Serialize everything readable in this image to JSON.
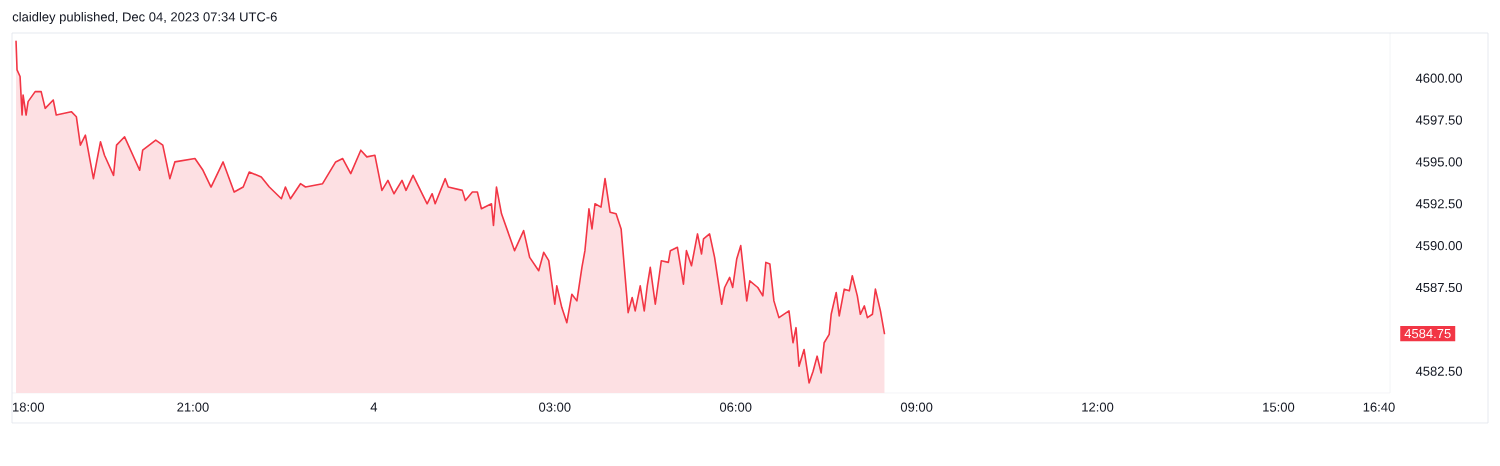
{
  "chart_data": {
    "type": "area",
    "title": "claidley published, Dec 04, 2023 07:34 UTC-6",
    "xlim": [
      "2023-12-03T18:00",
      "2023-12-04T16:51"
    ],
    "ylim": [
      4581.2,
      4602.7
    ],
    "xticks": [
      {
        "value": "2023-12-03T18:00",
        "label": "18:00"
      },
      {
        "value": "2023-12-03T21:00",
        "label": "21:00"
      },
      {
        "value": "2023-12-04T00:00",
        "label": "4"
      },
      {
        "value": "2023-12-04T03:00",
        "label": "03:00"
      },
      {
        "value": "2023-12-04T06:00",
        "label": "06:00"
      },
      {
        "value": "2023-12-04T09:00",
        "label": "09:00"
      },
      {
        "value": "2023-12-04T12:00",
        "label": "12:00"
      },
      {
        "value": "2023-12-04T15:00",
        "label": "15:00"
      },
      {
        "value": "2023-12-04T16:40",
        "label": "16:40"
      }
    ],
    "yticks": [
      {
        "value": 4582.5,
        "label": "4582.50"
      },
      {
        "value": 4587.5,
        "label": "4587.50"
      },
      {
        "value": 4590,
        "label": "4590.00"
      },
      {
        "value": 4592.5,
        "label": "4592.50"
      },
      {
        "value": 4595,
        "label": "4595.00"
      },
      {
        "value": 4597.5,
        "label": "4597.50"
      },
      {
        "value": 4600,
        "label": "4600.00"
      }
    ],
    "annotations": [
      "4584.75"
    ],
    "series": [
      {
        "color": "#f23645",
        "x": [
          "2023-12-03T18:04",
          "2023-12-03T18:05",
          "2023-12-03T18:08",
          "2023-12-03T18:10",
          "2023-12-03T18:11",
          "2023-12-03T18:14",
          "2023-12-03T18:16",
          "2023-12-03T18:23",
          "2023-12-03T18:29",
          "2023-12-03T18:33",
          "2023-12-03T18:41",
          "2023-12-03T18:44",
          "2023-12-03T18:59",
          "2023-12-03T19:04",
          "2023-12-03T19:08",
          "2023-12-03T19:13",
          "2023-12-03T19:21",
          "2023-12-03T19:28",
          "2023-12-03T19:32",
          "2023-12-03T19:41",
          "2023-12-03T19:44",
          "2023-12-03T19:52",
          "2023-12-03T20:07",
          "2023-12-03T20:10",
          "2023-12-03T20:23",
          "2023-12-03T20:30",
          "2023-12-03T20:37",
          "2023-12-03T20:42",
          "2023-12-03T21:02",
          "2023-12-03T21:10",
          "2023-12-03T21:18",
          "2023-12-03T21:30",
          "2023-12-03T21:41",
          "2023-12-03T21:50",
          "2023-12-03T21:56",
          "2023-12-03T22:08",
          "2023-12-03T22:16",
          "2023-12-03T22:28",
          "2023-12-03T22:32",
          "2023-12-03T22:37",
          "2023-12-03T22:47",
          "2023-12-03T22:52",
          "2023-12-03T23:09",
          "2023-12-03T23:22",
          "2023-12-03T23:29",
          "2023-12-03T23:37",
          "2023-12-03T23:47",
          "2023-12-03T23:53",
          "2023-12-04T00:01",
          "2023-12-04T00:08",
          "2023-12-04T00:14",
          "2023-12-04T00:20",
          "2023-12-04T00:28",
          "2023-12-04T00:32",
          "2023-12-04T00:39",
          "2023-12-04T00:53",
          "2023-12-04T00:58",
          "2023-12-04T01:01",
          "2023-12-04T01:11",
          "2023-12-04T01:14",
          "2023-12-04T01:28",
          "2023-12-04T01:31",
          "2023-12-04T01:38",
          "2023-12-04T01:43",
          "2023-12-04T01:47",
          "2023-12-04T01:57",
          "2023-12-04T01:59",
          "2023-12-04T02:02",
          "2023-12-04T02:07",
          "2023-12-04T02:20",
          "2023-12-04T02:29",
          "2023-12-04T02:35",
          "2023-12-04T02:44",
          "2023-12-04T02:49",
          "2023-12-04T02:54",
          "2023-12-04T03:00",
          "2023-12-04T03:02",
          "2023-12-04T03:07",
          "2023-12-04T03:12",
          "2023-12-04T03:17",
          "2023-12-04T03:22",
          "2023-12-04T03:27",
          "2023-12-04T03:30",
          "2023-12-04T03:34",
          "2023-12-04T03:37",
          "2023-12-04T03:40",
          "2023-12-04T03:46",
          "2023-12-04T03:50",
          "2023-12-04T03:55",
          "2023-12-04T04:01",
          "2023-12-04T04:06",
          "2023-12-04T04:13",
          "2023-12-04T04:17",
          "2023-12-04T04:20",
          "2023-12-04T04:25",
          "2023-12-04T04:29",
          "2023-12-04T04:32",
          "2023-12-04T04:35",
          "2023-12-04T04:40",
          "2023-12-04T04:46",
          "2023-12-04T04:53",
          "2023-12-04T04:55",
          "2023-12-04T05:02",
          "2023-12-04T05:08",
          "2023-12-04T05:11",
          "2023-12-04T05:16",
          "2023-12-04T05:22",
          "2023-12-04T05:26",
          "2023-12-04T05:28",
          "2023-12-04T05:34",
          "2023-12-04T05:39",
          "2023-12-04T05:46",
          "2023-12-04T05:49",
          "2023-12-04T05:54",
          "2023-12-04T05:57",
          "2023-12-04T06:01",
          "2023-12-04T06:05",
          "2023-12-04T06:11",
          "2023-12-04T06:14",
          "2023-12-04T06:22",
          "2023-12-04T06:27",
          "2023-12-04T06:30",
          "2023-12-04T06:34",
          "2023-12-04T06:38",
          "2023-12-04T06:43",
          "2023-12-04T06:53",
          "2023-12-04T06:57",
          "2023-12-04T07:00",
          "2023-12-04T07:03",
          "2023-12-04T07:08",
          "2023-12-04T07:13",
          "2023-12-04T07:17",
          "2023-12-04T07:21",
          "2023-12-04T07:25",
          "2023-12-04T07:28",
          "2023-12-04T07:33",
          "2023-12-04T07:35",
          "2023-12-04T07:40",
          "2023-12-04T07:43",
          "2023-12-04T07:48",
          "2023-12-04T07:53",
          "2023-12-04T07:56",
          "2023-12-04T08:01",
          "2023-12-04T08:04",
          "2023-12-04T08:08",
          "2023-12-04T08:11",
          "2023-12-04T08:16",
          "2023-12-04T08:19",
          "2023-12-04T08:24",
          "2023-12-04T08:28"
        ],
        "values": [
          4602.2,
          4600.5,
          4600.1,
          4597.8,
          4599.0,
          4597.8,
          4598.6,
          4599.2,
          4599.2,
          4598.2,
          4598.7,
          4597.8,
          4598.0,
          4597.7,
          4596.0,
          4596.6,
          4594.0,
          4596.2,
          4595.4,
          4594.2,
          4596.0,
          4596.5,
          4594.5,
          4595.7,
          4596.3,
          4596.0,
          4594.0,
          4595.0,
          4595.2,
          4594.5,
          4593.5,
          4595.0,
          4593.2,
          4593.5,
          4594.4,
          4594.1,
          4593.5,
          4592.8,
          4593.5,
          4592.8,
          4593.7,
          4593.5,
          4593.7,
          4595.0,
          4595.2,
          4594.3,
          4595.7,
          4595.3,
          4595.4,
          4593.3,
          4593.9,
          4593.1,
          4593.9,
          4593.3,
          4594.2,
          4592.5,
          4593.1,
          4592.5,
          4594.0,
          4593.5,
          4593.3,
          4592.7,
          4593.2,
          4593.2,
          4592.2,
          4592.5,
          4591.2,
          4593.5,
          4591.9,
          4589.7,
          4590.9,
          4589.3,
          4588.5,
          4589.6,
          4589.1,
          4586.5,
          4587.6,
          4586.3,
          4585.4,
          4587.1,
          4586.7,
          4588.7,
          4589.7,
          4592.2,
          4591.0,
          4592.5,
          4592.3,
          4594.0,
          4592.0,
          4591.9,
          4591.0,
          4586.0,
          4586.9,
          4586.1,
          4587.6,
          4586.1,
          4587.6,
          4588.7,
          4586.5,
          4589.1,
          4589.0,
          4589.7,
          4589.9,
          4587.7,
          4589.7,
          4588.8,
          4590.7,
          4589.5,
          4590.4,
          4590.7,
          4589.3,
          4586.5,
          4587.5,
          4588.1,
          4587.5,
          4589.2,
          4590.0,
          4586.7,
          4587.9,
          4587.5,
          4587.0,
          4589.0,
          4588.9,
          4586.7,
          4585.7,
          4586.1,
          4584.2,
          4585.1,
          4582.8,
          4583.8,
          4581.8,
          4582.5,
          4583.4,
          4582.4,
          4584.2,
          4584.7,
          4585.9,
          4587.2,
          4585.8,
          4587.4,
          4587.3,
          4588.2,
          4587.0,
          4585.9,
          4586.4,
          4585.7,
          4585.9,
          4587.4,
          4586.1,
          4584.75
        ]
      }
    ]
  }
}
